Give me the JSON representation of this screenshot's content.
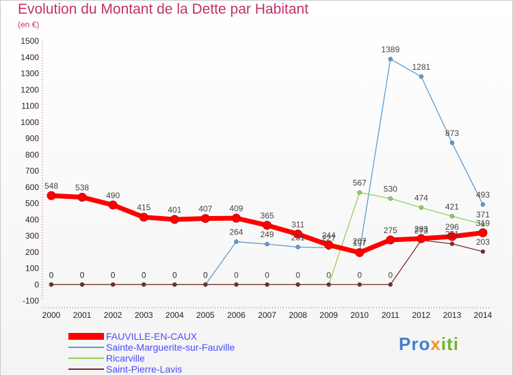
{
  "title": "Evolution du Montant de la Dette par Habitant",
  "unit": "(en €)",
  "logo": {
    "part1": "Pro",
    "part2": "x",
    "part3": "iti"
  },
  "chart_data": {
    "type": "line",
    "x": [
      "2000",
      "2001",
      "2002",
      "2003",
      "2004",
      "2005",
      "2006",
      "2007",
      "2008",
      "2009",
      "2010",
      "2011",
      "2012",
      "2013",
      "2014"
    ],
    "ylim": [
      -100,
      1500
    ],
    "yticks": [
      -100,
      0,
      100,
      200,
      300,
      400,
      500,
      600,
      700,
      800,
      900,
      1000,
      1100,
      1200,
      1300,
      1400,
      1500
    ],
    "grid": false,
    "legend_position": "bottom-left",
    "series": [
      {
        "name": "FAUVILLE-EN-CAUX",
        "color": "#ff0000",
        "values": [
          548,
          538,
          490,
          415,
          401,
          407,
          409,
          365,
          311,
          244,
          197,
          275,
          283,
          296,
          319
        ],
        "labels": [
          "548",
          "538",
          "490",
          "415",
          "401",
          "407",
          "409",
          "365",
          "311",
          "244",
          "197",
          "275",
          "283",
          "296",
          "319"
        ]
      },
      {
        "name": "Sainte-Marguerite-sur-Fauville",
        "color": "#5b9bd5",
        "values": [
          0,
          0,
          0,
          0,
          0,
          0,
          264,
          249,
          231,
          227,
          207,
          1389,
          1281,
          873,
          493
        ],
        "labels": [
          "0",
          "0",
          "0",
          "0",
          "0",
          "0",
          "264",
          "249",
          "231",
          "227",
          "207",
          "1389",
          "1281",
          "873",
          "493"
        ]
      },
      {
        "name": "Ricarville",
        "color": "#8fd05a",
        "values": [
          0,
          0,
          0,
          0,
          0,
          0,
          0,
          0,
          0,
          0,
          567,
          530,
          474,
          421,
          371
        ],
        "labels": [
          "",
          "",
          "",
          "",
          "",
          "",
          "",
          "",
          "",
          "",
          "567",
          "530",
          "474",
          "421",
          "371"
        ]
      },
      {
        "name": "Saint-Pierre-Lavis",
        "color": "#7a2a2a",
        "values": [
          0,
          0,
          0,
          0,
          0,
          0,
          0,
          0,
          0,
          0,
          0,
          0,
          273,
          251,
          203
        ],
        "labels": [
          "0",
          "0",
          "0",
          "0",
          "0",
          "0",
          "0",
          "0",
          "0",
          "0",
          "0",
          "0",
          "273",
          "251",
          "203"
        ]
      }
    ]
  }
}
